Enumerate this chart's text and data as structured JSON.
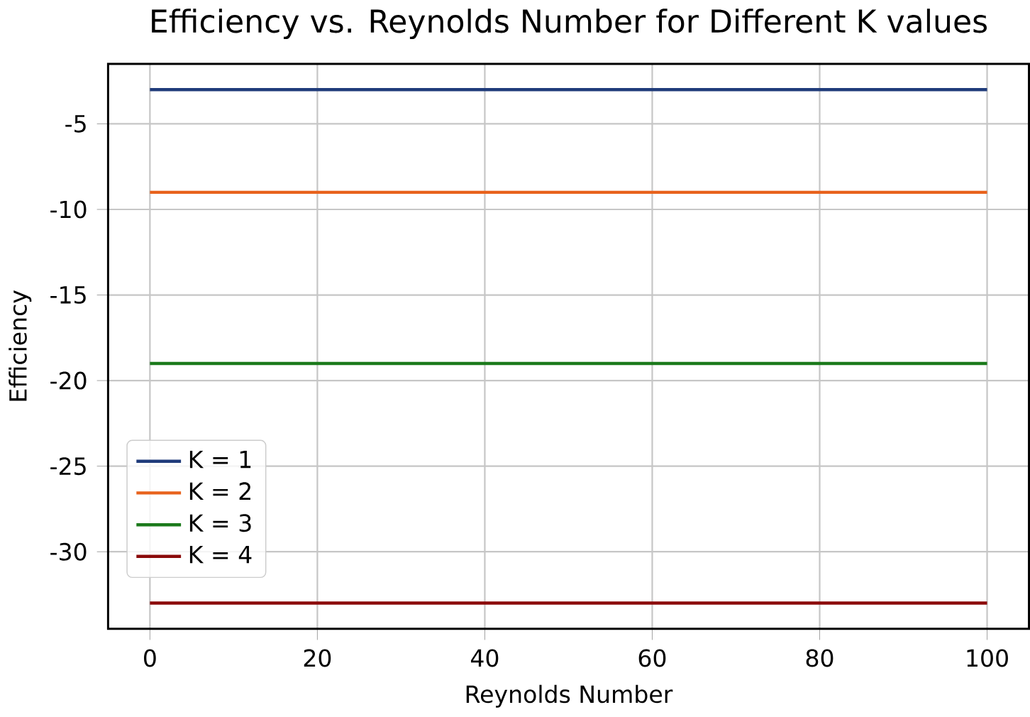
{
  "chart_data": {
    "type": "line",
    "title": "Efficiency vs. Reynolds Number for Different K values",
    "xlabel": "Reynolds Number",
    "ylabel": "Efficiency",
    "x": [
      0,
      100
    ],
    "series": [
      {
        "name": "K = 1",
        "color": "#1f3b7a",
        "values": [
          -3,
          -3
        ]
      },
      {
        "name": "K = 2",
        "color": "#e8621c",
        "values": [
          -9,
          -9
        ]
      },
      {
        "name": "K = 3",
        "color": "#1b7a1b",
        "values": [
          -19,
          -19
        ]
      },
      {
        "name": "K = 4",
        "color": "#8b0a0a",
        "values": [
          -33,
          -33
        ]
      }
    ],
    "xlim": [
      -5,
      105
    ],
    "ylim": [
      -34.5,
      -1.5
    ],
    "xticks": [
      0,
      20,
      40,
      60,
      80,
      100
    ],
    "yticks": [
      -30,
      -25,
      -20,
      -15,
      -10,
      -5
    ],
    "grid": true,
    "legend": "bottom left",
    "marker": "none",
    "line_style": "solid"
  }
}
